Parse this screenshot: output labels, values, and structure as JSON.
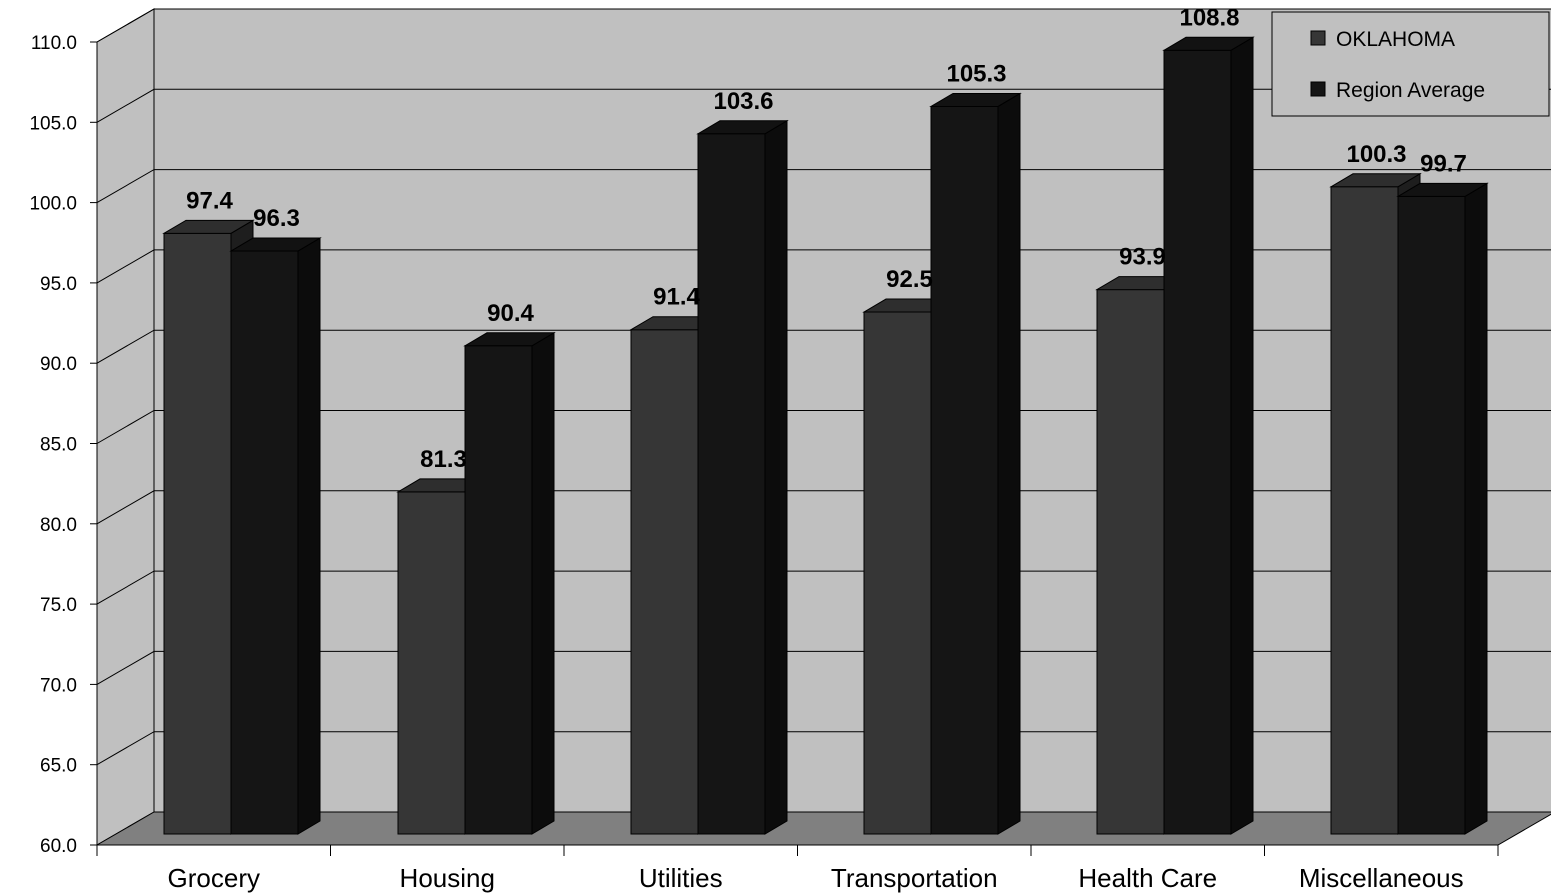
{
  "chart_data": {
    "type": "bar",
    "style": "3d-clustered-column",
    "title": "",
    "xlabel": "",
    "ylabel": "",
    "categories": [
      "Grocery",
      "Housing",
      "Utilities",
      "Transportation",
      "Health Care",
      "Miscellaneous"
    ],
    "series": [
      {
        "name": "OKLAHOMA",
        "values": [
          97.4,
          81.3,
          91.4,
          92.5,
          93.9,
          100.3
        ],
        "color": "#363636"
      },
      {
        "name": "Region Average",
        "values": [
          96.3,
          90.4,
          103.6,
          105.3,
          108.8,
          99.7
        ],
        "color": "#151515"
      }
    ],
    "ylim": [
      60,
      110
    ],
    "yticks": [
      "60.0",
      "65.0",
      "70.0",
      "75.0",
      "80.0",
      "85.0",
      "90.0",
      "95.0",
      "100.0",
      "105.0",
      "110.0"
    ],
    "grid": true,
    "legend_position": "top-right",
    "wall_color": "#c0c0c0",
    "floor_color": "#808080"
  }
}
